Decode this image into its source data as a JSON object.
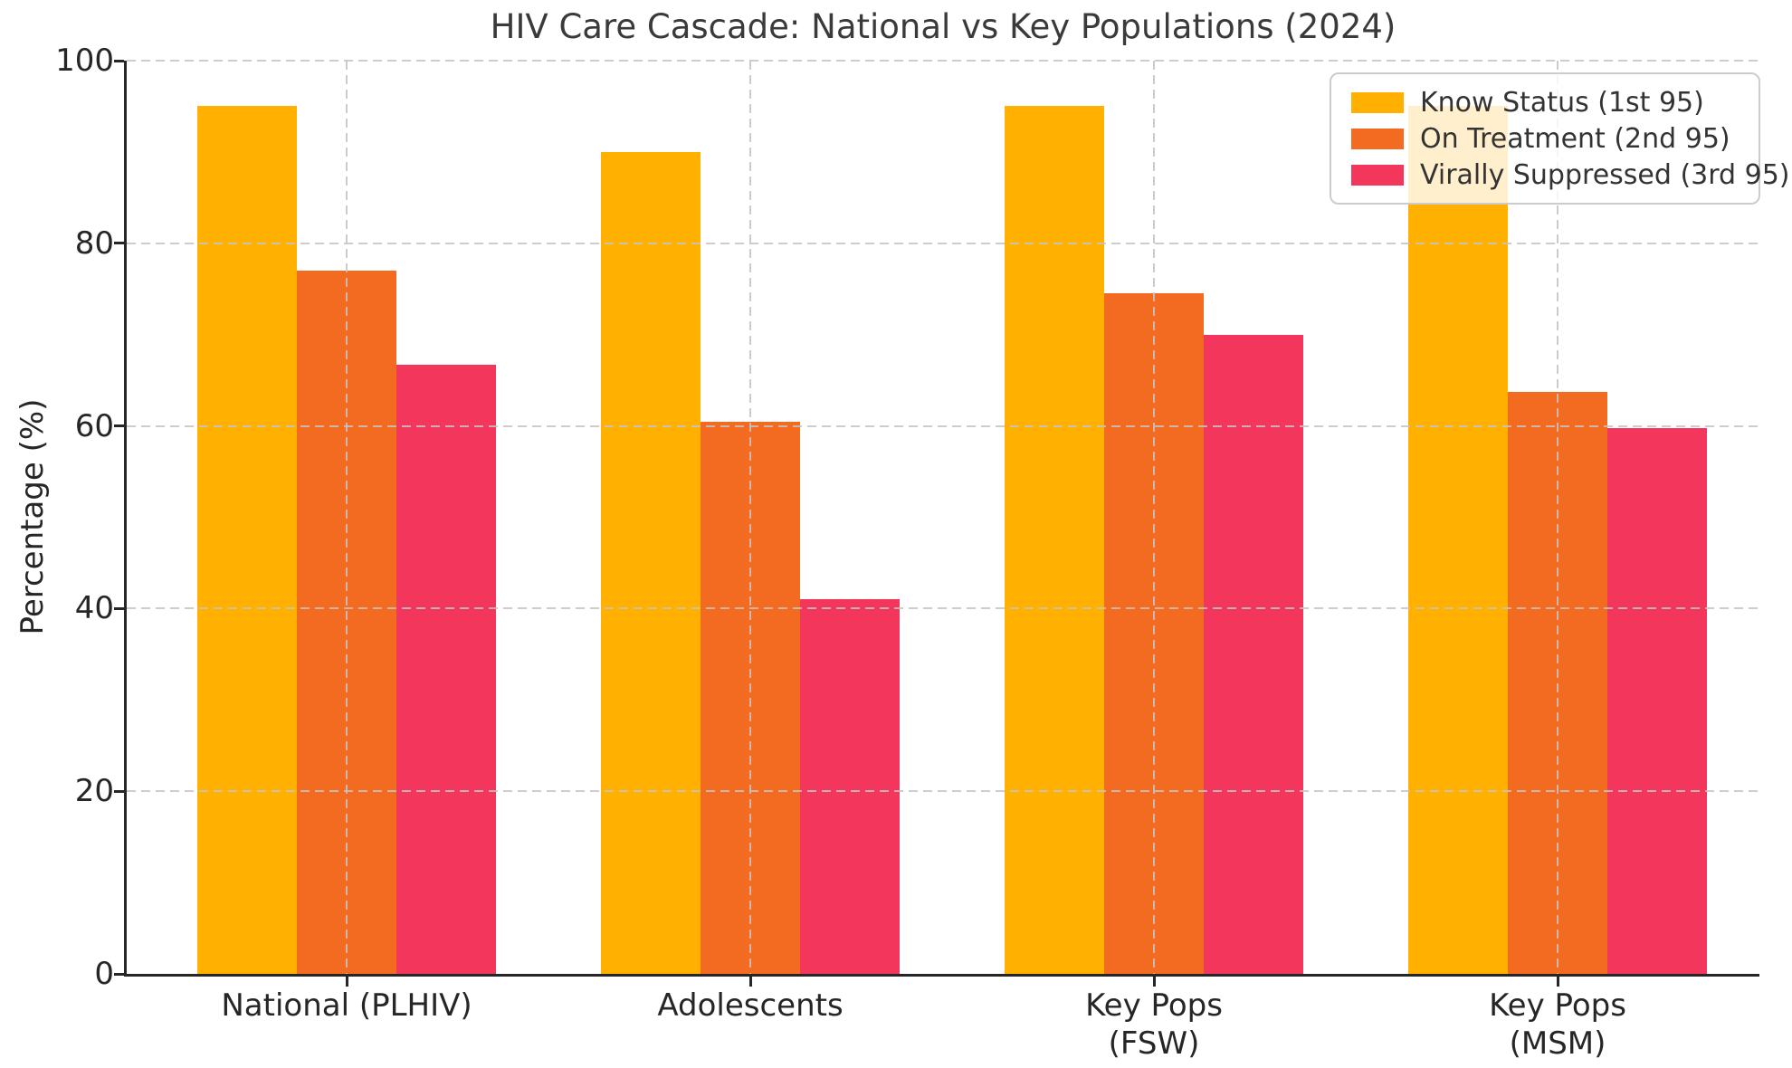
{
  "title": "HIV Care Cascade: National vs Key Populations (2024)",
  "chart_data": {
    "type": "bar",
    "title": "HIV Care Cascade: National vs Key Populations (2024)",
    "xlabel": "",
    "ylabel": "Percentage (%)",
    "categories": [
      "National (PLHIV)",
      "Adolescents",
      "Key Pops\n(FSW)",
      "Key Pops\n(MSM)"
    ],
    "series": [
      {
        "name": "Know Status (1st 95)",
        "color": "#FFB000",
        "values": [
          95,
          90,
          95,
          95
        ]
      },
      {
        "name": "On Treatment (2nd 95)",
        "color": "#F26B21",
        "values": [
          77,
          60.5,
          74.5,
          63.7
        ]
      },
      {
        "name": "Virally Suppressed (3rd 95)",
        "color": "#F3365C",
        "values": [
          66.7,
          41,
          70,
          59.8
        ]
      }
    ],
    "ylim": [
      0,
      100
    ],
    "yticks": [
      0,
      20,
      40,
      60,
      80,
      100
    ],
    "grid": "dashed gridlines on both axes, drawn above bars",
    "legend_position": "upper right"
  }
}
